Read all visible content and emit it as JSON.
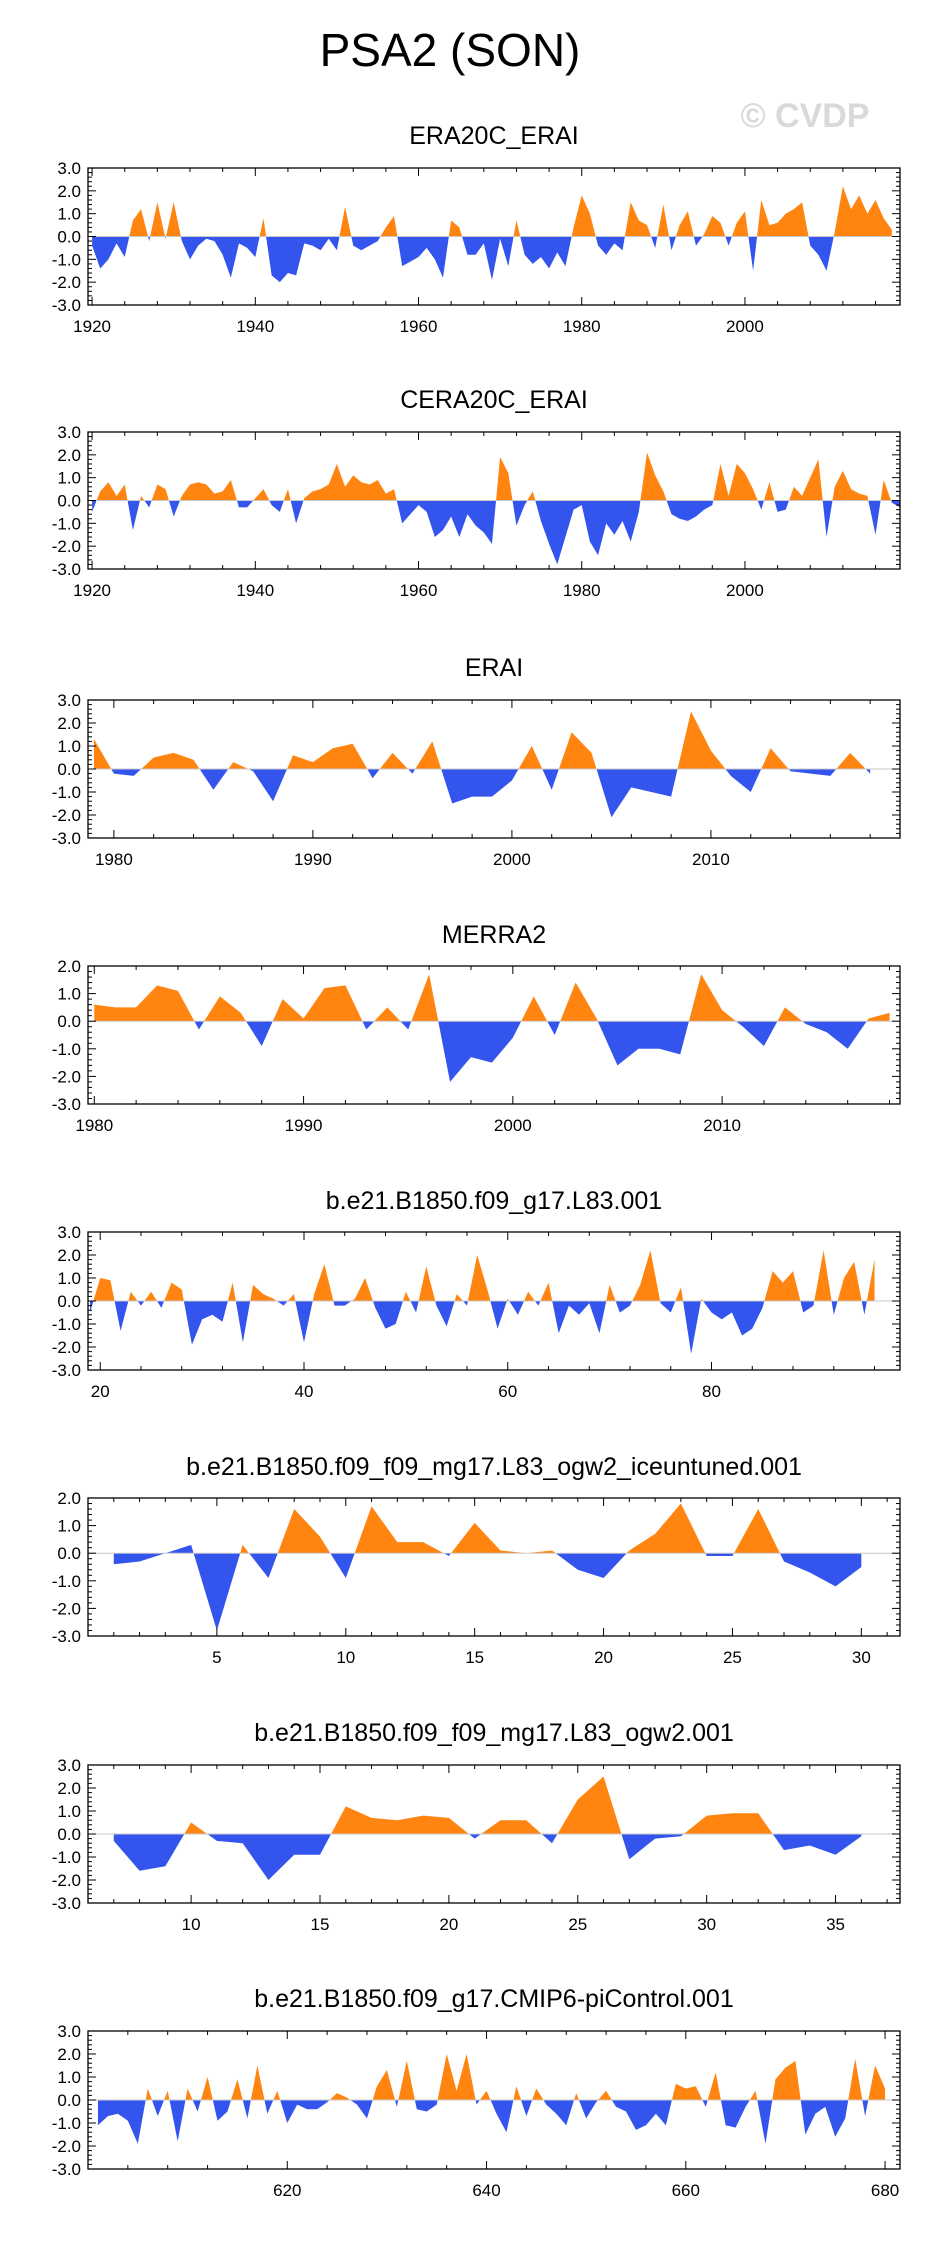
{
  "figure": {
    "title": "PSA2 (SON)",
    "watermark": "© CVDP",
    "colors": {
      "positive": "#ff8410",
      "negative": "#3355ee",
      "axis": "#000000",
      "zero_line": "#c8c8c8"
    }
  },
  "chart_data": [
    {
      "type": "area",
      "title": "ERA20C_ERAI",
      "xlim": [
        1919.5,
        2019
      ],
      "ylim": [
        -3.0,
        3.0
      ],
      "yticks": [
        "3.0",
        "2.0",
        "1.0",
        "0.0",
        "-1.0",
        "-2.0",
        "-3.0"
      ],
      "xticks": [
        1920,
        1940,
        1960,
        1980,
        2000
      ],
      "x_start": 1920,
      "values": [
        -0.4,
        -1.4,
        -1.0,
        -0.3,
        -0.9,
        0.7,
        1.2,
        -0.2,
        1.5,
        -0.1,
        1.5,
        -0.2,
        -1.0,
        -0.4,
        -0.1,
        -0.2,
        -0.8,
        -1.8,
        -0.3,
        -0.5,
        -0.9,
        0.8,
        -1.7,
        -2.0,
        -1.6,
        -1.7,
        -0.3,
        -0.4,
        -0.6,
        -0.1,
        -0.6,
        1.3,
        -0.4,
        -0.6,
        -0.4,
        -0.2,
        0.4,
        0.9,
        -1.3,
        -1.1,
        -0.9,
        -0.5,
        -1.0,
        -1.8,
        0.7,
        0.4,
        -0.8,
        -0.8,
        -0.3,
        -1.9,
        -0.1,
        -1.3,
        0.7,
        -0.8,
        -1.2,
        -0.9,
        -1.4,
        -0.7,
        -1.3,
        0.4,
        1.8,
        1.0,
        -0.4,
        -0.8,
        -0.3,
        -0.6,
        1.5,
        0.7,
        0.5,
        -0.5,
        1.4,
        -0.6,
        0.5,
        1.1,
        -0.4,
        0.1,
        0.9,
        0.6,
        -0.4,
        0.6,
        1.1,
        -1.5,
        1.6,
        0.5,
        0.6,
        1.0,
        1.2,
        1.5,
        -0.4,
        -0.8,
        -1.5,
        0.2,
        2.2,
        1.2,
        1.8,
        1.0,
        1.6,
        0.8,
        0.3
      ]
    },
    {
      "type": "area",
      "title": "CERA20C_ERAI",
      "xlim": [
        1919.5,
        2019
      ],
      "ylim": [
        -3.0,
        3.0
      ],
      "yticks": [
        "3.0",
        "2.0",
        "1.0",
        "0.0",
        "-1.0",
        "-2.0",
        "-3.0"
      ],
      "xticks": [
        1920,
        1940,
        1960,
        1980,
        2000
      ],
      "x_start": 1920,
      "values": [
        -0.5,
        0.4,
        0.8,
        0.2,
        0.7,
        -1.3,
        0.2,
        -0.3,
        0.7,
        0.5,
        -0.7,
        0.2,
        0.7,
        0.8,
        0.7,
        0.3,
        0.4,
        0.9,
        -0.3,
        -0.3,
        0.1,
        0.5,
        -0.2,
        -0.5,
        0.5,
        -1.0,
        0.1,
        0.4,
        0.5,
        0.7,
        1.6,
        0.6,
        1.1,
        0.8,
        0.7,
        0.9,
        0.3,
        0.5,
        -1.0,
        -0.6,
        -0.2,
        -0.5,
        -1.6,
        -1.3,
        -0.7,
        -1.6,
        -0.6,
        -1.1,
        -1.4,
        -1.9,
        1.9,
        1.2,
        -1.1,
        -0.2,
        0.4,
        -0.9,
        -1.9,
        -2.8,
        -1.6,
        -0.4,
        -0.2,
        -1.8,
        -2.4,
        -1.0,
        -1.5,
        -0.9,
        -1.8,
        -0.5,
        2.1,
        1.1,
        0.4,
        -0.6,
        -0.8,
        -0.9,
        -0.7,
        -0.4,
        -0.2,
        1.6,
        0.2,
        1.6,
        1.2,
        0.5,
        -0.4,
        0.8,
        -0.5,
        -0.4,
        0.6,
        0.2,
        1.0,
        1.8,
        -1.6,
        0.6,
        1.3,
        0.5,
        0.3,
        0.2,
        -1.5,
        0.9,
        -0.1,
        -0.3
      ]
    },
    {
      "type": "area",
      "title": "ERAI",
      "xlim": [
        1978.7,
        2019.5
      ],
      "ylim": [
        -3.0,
        3.0
      ],
      "yticks": [
        "3.0",
        "2.0",
        "1.0",
        "0.0",
        "-1.0",
        "-2.0",
        "-3.0"
      ],
      "xticks": [
        1980,
        1990,
        2000,
        2010
      ],
      "x_start": 1979,
      "values": [
        1.3,
        -0.2,
        -0.3,
        0.5,
        0.7,
        0.4,
        -0.9,
        0.3,
        -0.1,
        -1.4,
        0.6,
        0.3,
        0.9,
        1.1,
        -0.4,
        0.7,
        -0.2,
        1.2,
        -1.5,
        -1.2,
        -1.2,
        -0.5,
        1.0,
        -0.9,
        1.6,
        0.7,
        -2.1,
        -0.8,
        -1.0,
        -1.2,
        2.5,
        0.8,
        -0.3,
        -1.0,
        0.9,
        -0.1,
        -0.2,
        -0.3,
        0.7,
        -0.2
      ]
    },
    {
      "type": "area",
      "title": "MERRA2",
      "xlim": [
        1979.7,
        2018.5
      ],
      "ylim": [
        -3.0,
        2.0
      ],
      "yticks": [
        "2.0",
        "1.0",
        "0.0",
        "-1.0",
        "-2.0",
        "-3.0"
      ],
      "xticks": [
        1980,
        1990,
        2000,
        2010
      ],
      "x_start": 1980,
      "values": [
        0.6,
        0.5,
        0.5,
        1.3,
        1.1,
        -0.3,
        0.9,
        0.3,
        -0.9,
        0.8,
        0.1,
        1.2,
        1.3,
        -0.3,
        0.5,
        -0.3,
        1.7,
        -2.2,
        -1.3,
        -1.5,
        -0.6,
        0.9,
        -0.5,
        1.4,
        0.1,
        -1.6,
        -1.0,
        -1.0,
        -1.2,
        1.7,
        0.4,
        -0.2,
        -0.9,
        0.5,
        -0.1,
        -0.4,
        -1.0,
        0.1,
        0.3
      ]
    },
    {
      "type": "area",
      "title": "b.e21.B1850.f09_g17.L83.001",
      "xlim": [
        18.8,
        98.5
      ],
      "ylim": [
        -3.0,
        3.0
      ],
      "yticks": [
        "3.0",
        "2.0",
        "1.0",
        "0.0",
        "-1.0",
        "-2.0",
        "-3.0"
      ],
      "xticks": [
        20,
        40,
        60,
        80
      ],
      "x_start": 19,
      "values": [
        -0.5,
        1.0,
        0.9,
        -1.3,
        0.4,
        -0.2,
        0.4,
        -0.3,
        0.8,
        0.5,
        -1.9,
        -0.8,
        -0.6,
        -0.9,
        0.8,
        -1.8,
        0.7,
        0.3,
        0.1,
        -0.2,
        0.3,
        -1.8,
        0.3,
        1.6,
        -0.2,
        -0.2,
        0.1,
        1.0,
        -0.3,
        -1.2,
        -1.0,
        0.4,
        -0.5,
        1.5,
        -0.2,
        -1.1,
        0.3,
        -0.2,
        2.0,
        0.5,
        -1.2,
        0.1,
        -0.6,
        0.4,
        -0.2,
        0.8,
        -1.4,
        -0.2,
        -0.6,
        -0.1,
        -1.4,
        0.7,
        -0.5,
        -0.2,
        0.7,
        2.2,
        -0.1,
        -0.5,
        0.6,
        -2.3,
        0.1,
        -0.5,
        -0.8,
        -0.5,
        -1.5,
        -1.2,
        -0.3,
        1.3,
        0.8,
        1.3,
        -0.5,
        -0.2,
        2.2,
        -0.6,
        1.0,
        1.7,
        -0.6,
        1.8
      ]
    },
    {
      "type": "area",
      "title": "b.e21.B1850.f09_f09_mg17.L83_ogw2_iceuntuned.001",
      "xlim": [
        0,
        31.5
      ],
      "ylim": [
        -3.0,
        2.0
      ],
      "yticks": [
        "2.0",
        "1.0",
        "0.0",
        "-1.0",
        "-2.0",
        "-3.0"
      ],
      "xticks": [
        5,
        10,
        15,
        20,
        25,
        30
      ],
      "x_start": 1,
      "values": [
        -0.4,
        -0.3,
        0,
        0.3,
        -2.8,
        0.3,
        -0.9,
        1.6,
        0.6,
        -0.9,
        1.7,
        0.4,
        0.4,
        -0.1,
        1.1,
        0.1,
        0,
        0.1,
        -0.6,
        -0.9,
        0.1,
        0.7,
        1.8,
        -0.1,
        -0.1,
        1.6,
        -0.3,
        -0.7,
        -1.2,
        -0.5
      ]
    },
    {
      "type": "area",
      "title": "b.e21.B1850.f09_f09_mg17.L83_ogw2.001",
      "xlim": [
        6,
        37.5
      ],
      "ylim": [
        -3.0,
        3.0
      ],
      "yticks": [
        "3.0",
        "2.0",
        "1.0",
        "0.0",
        "-1.0",
        "-2.0",
        "-3.0"
      ],
      "xticks": [
        10,
        15,
        20,
        25,
        30,
        35
      ],
      "x_start": 7,
      "values": [
        -0.3,
        -1.6,
        -1.4,
        0.5,
        -0.3,
        -0.4,
        -2.0,
        -0.9,
        -0.9,
        1.2,
        0.7,
        0.6,
        0.8,
        0.7,
        -0.2,
        0.6,
        0.6,
        -0.4,
        1.5,
        2.5,
        -1.1,
        -0.2,
        -0.1,
        0.8,
        0.9,
        0.9,
        -0.7,
        -0.5,
        -0.9,
        -0.1
      ]
    },
    {
      "type": "area",
      "title": "b.e21.B1850.f09_g17.CMIP6-piControl.001",
      "xlim": [
        600,
        681.5
      ],
      "ylim": [
        -3.0,
        3.0
      ],
      "yticks": [
        "3.0",
        "2.0",
        "1.0",
        "0.0",
        "-1.0",
        "-2.0",
        "-3.0"
      ],
      "xticks": [
        620,
        640,
        660,
        680
      ],
      "x_start": 601,
      "values": [
        -1.1,
        -0.7,
        -0.6,
        -0.9,
        -1.9,
        0.5,
        -0.7,
        0.4,
        -1.8,
        0.5,
        -0.5,
        1.0,
        -0.9,
        -0.5,
        0.9,
        -0.8,
        1.5,
        -0.6,
        0.4,
        -1.0,
        -0.2,
        -0.4,
        -0.4,
        -0.1,
        0.3,
        0.1,
        -0.2,
        -0.8,
        0.6,
        1.3,
        -0.3,
        1.7,
        -0.4,
        -0.5,
        -0.2,
        2.0,
        0.4,
        2.0,
        -0.2,
        0.4,
        -0.6,
        -1.4,
        0.6,
        -0.7,
        0.5,
        -0.2,
        -0.6,
        -1.1,
        0.3,
        -0.8,
        -0.1,
        0.4,
        -0.3,
        -0.5,
        -1.3,
        -1.1,
        -0.6,
        -1.1,
        0.7,
        0.5,
        0.6,
        -0.3,
        1.2,
        -1.1,
        -1.2,
        -0.3,
        0.4,
        -1.9,
        0.9,
        1.4,
        1.7,
        -1.5,
        -0.6,
        -0.3,
        -1.6,
        -0.8,
        1.8,
        -0.7,
        1.5,
        0.5
      ]
    }
  ]
}
